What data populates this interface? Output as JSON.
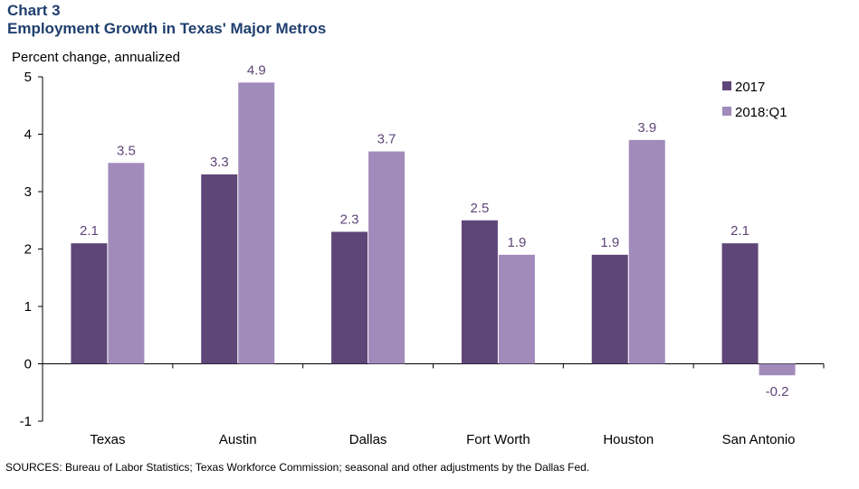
{
  "title_line1": "Chart 3",
  "title_line2": "Employment Growth in Texas' Major Metros",
  "source": "SOURCES: Bureau  of  Labor Statistics; Texas Workforce Commission; seasonal and other adjustments by the Dallas Fed.",
  "chart_data": {
    "type": "bar",
    "ylabel": "Percent change, annualized",
    "ylim": [
      -1,
      5
    ],
    "yticks": [
      "-1",
      "0",
      "1",
      "2",
      "3",
      "4",
      "5"
    ],
    "categories": [
      "Texas",
      "Austin",
      "Dallas",
      "Fort Worth",
      "Houston",
      "San Antonio"
    ],
    "series": [
      {
        "name": "2017",
        "color": "#5f4678",
        "values": [
          2.1,
          3.3,
          2.3,
          2.5,
          1.9,
          2.1
        ],
        "labels": [
          "2.1",
          "3.3",
          "2.3",
          "2.5",
          "1.9",
          "2.1"
        ]
      },
      {
        "name": "2018:Q1",
        "color": "#a18bbb",
        "values": [
          3.5,
          4.9,
          3.7,
          1.9,
          3.9,
          -0.2
        ],
        "labels": [
          "3.5",
          "4.9",
          "3.7",
          "1.9",
          "3.9",
          "-0.2"
        ]
      }
    ],
    "legend_position": "top-right",
    "label_color": "#5f4678"
  }
}
